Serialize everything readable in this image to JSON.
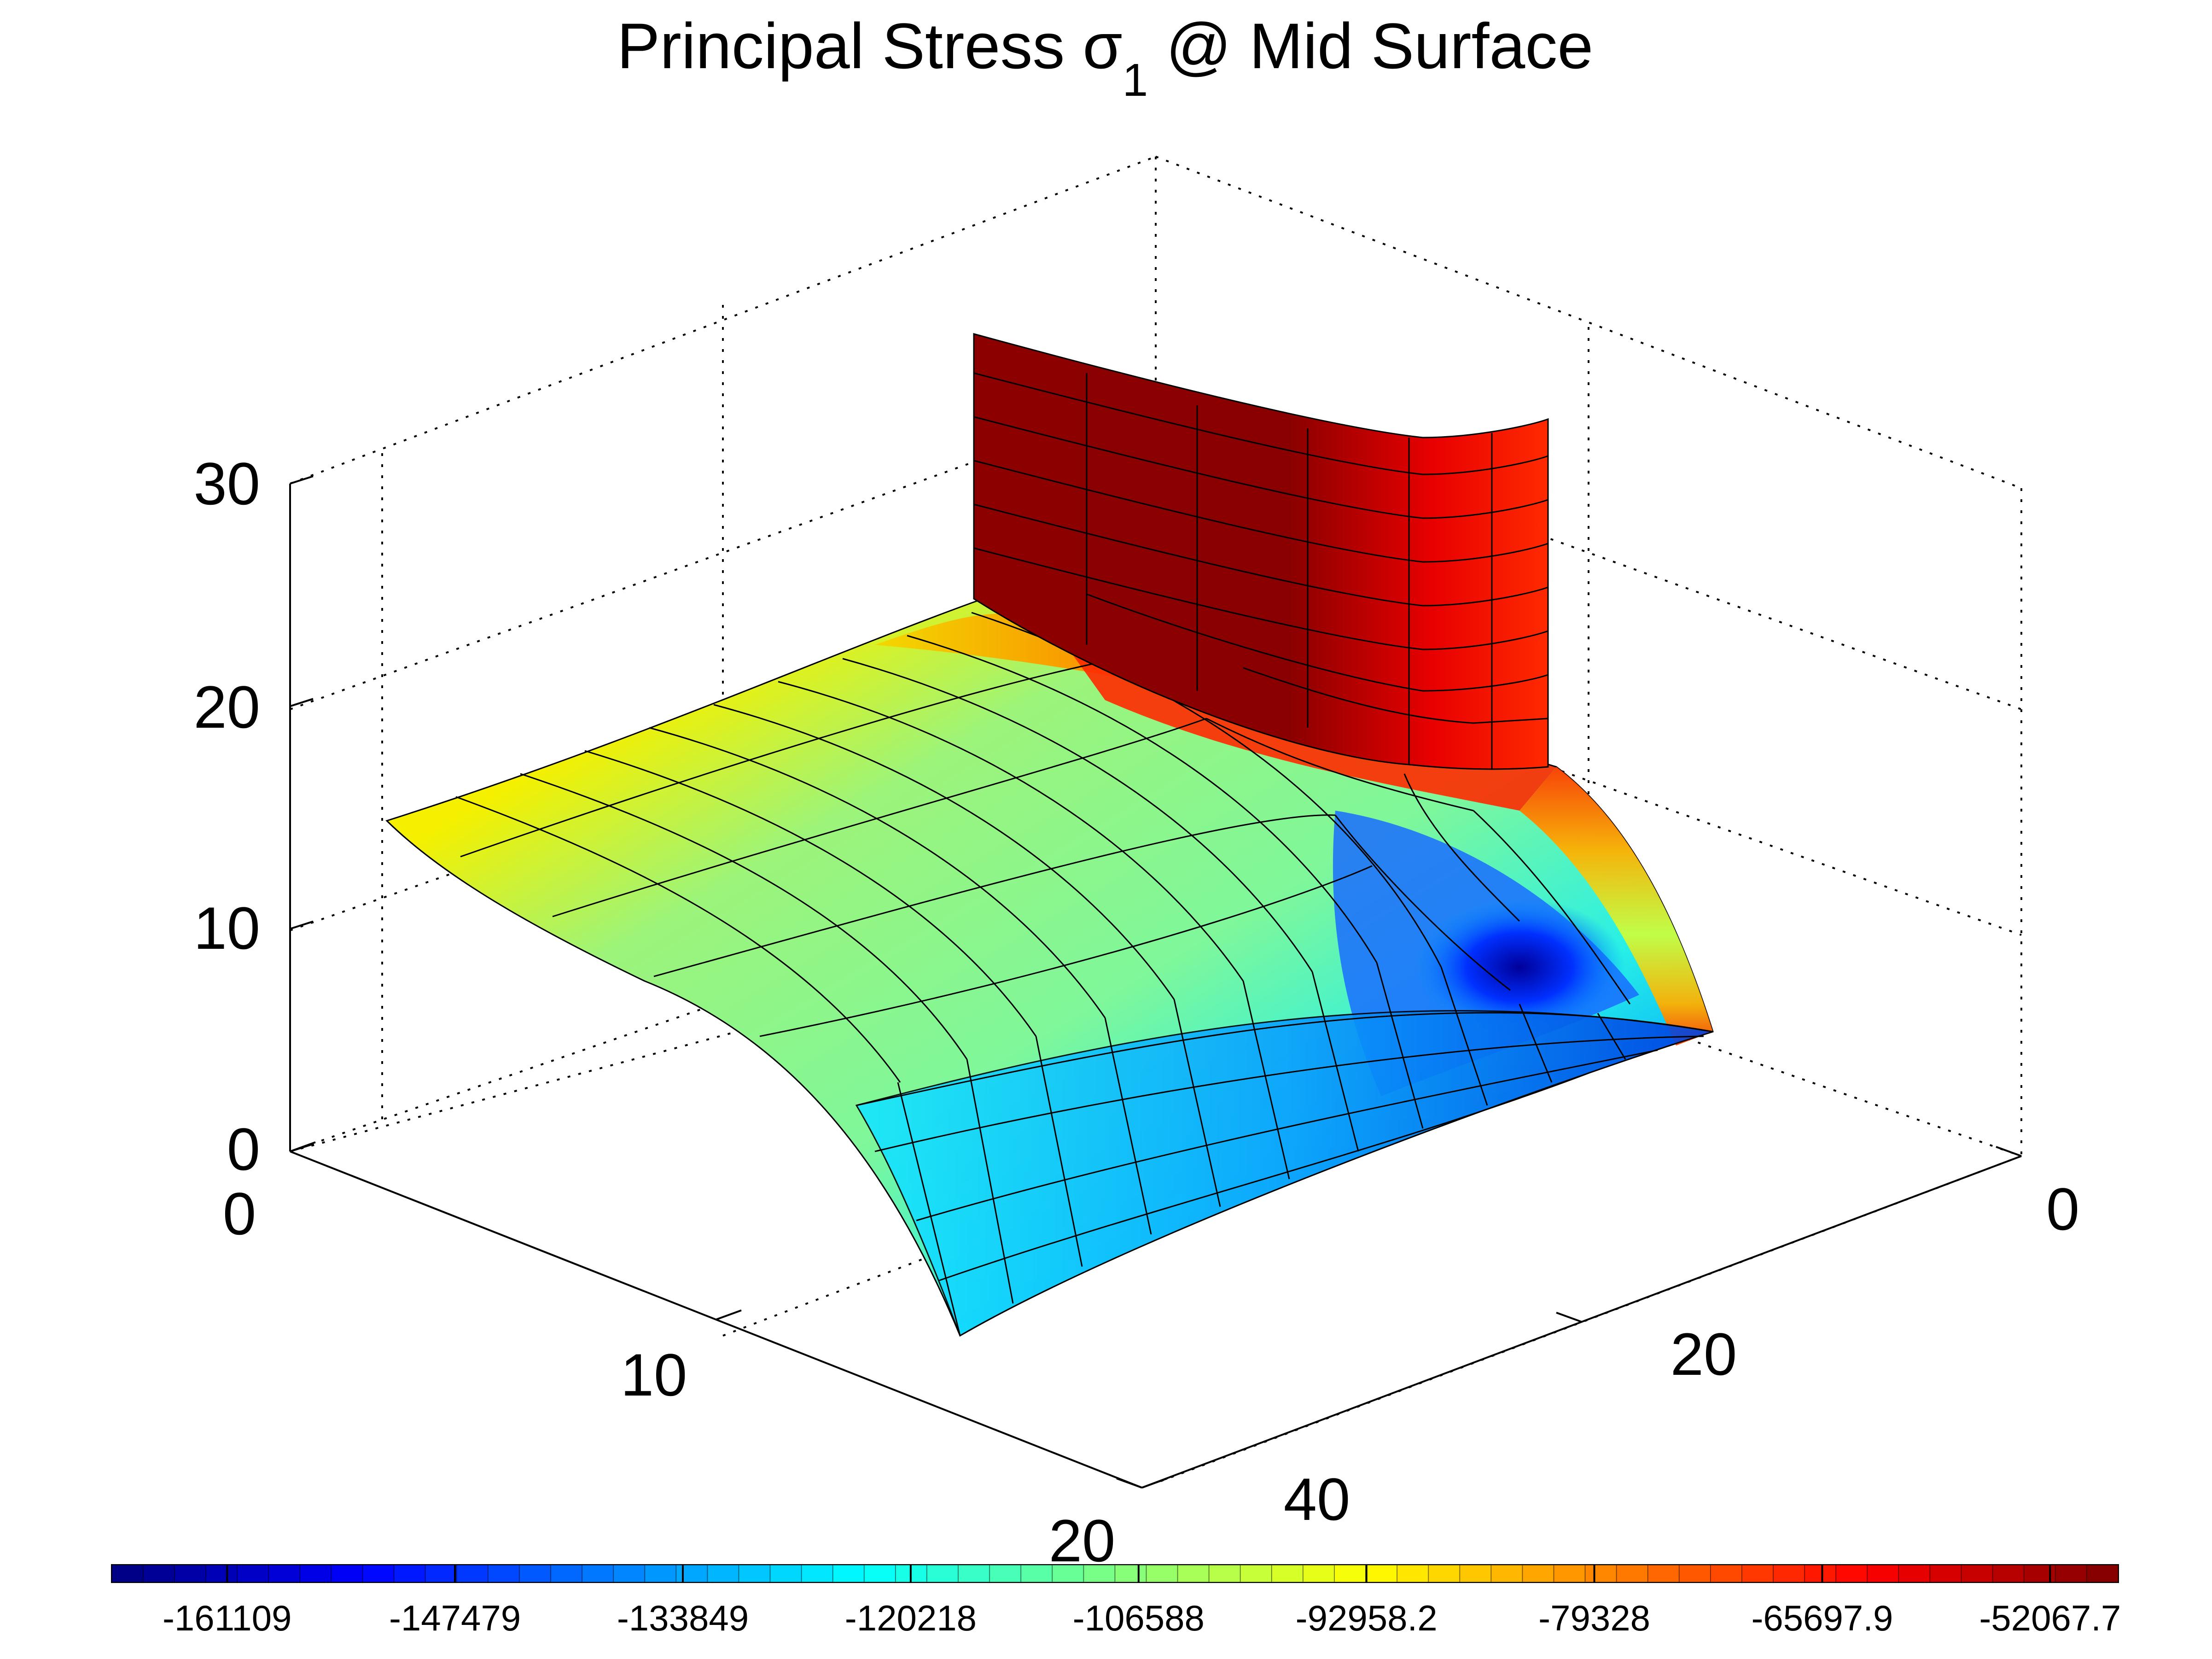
{
  "title": {
    "main": "Principal Stress σ",
    "sub": "1",
    "rest": " @ Mid Surface"
  },
  "chart_data": {
    "type": "surface",
    "title": "Principal Stress σ1 @ Mid Surface",
    "z_axis": {
      "ticks": [
        "0",
        "10",
        "20",
        "30"
      ],
      "range": [
        0,
        30
      ]
    },
    "x_axis": {
      "ticks": [
        "0",
        "10",
        "20"
      ],
      "range": [
        0,
        20
      ]
    },
    "y_axis": {
      "ticks": [
        "0",
        "20",
        "40"
      ],
      "range": [
        0,
        40
      ]
    },
    "colorbar": {
      "colormap": "jet",
      "range": [
        -168000,
        -48000
      ],
      "ticks": [
        "-161109",
        "-147479",
        "-133849",
        "-120218",
        "-106588",
        "-92958.2",
        "-79328",
        "-65697.9",
        "-52067.7"
      ]
    },
    "grid": true,
    "box": true
  }
}
